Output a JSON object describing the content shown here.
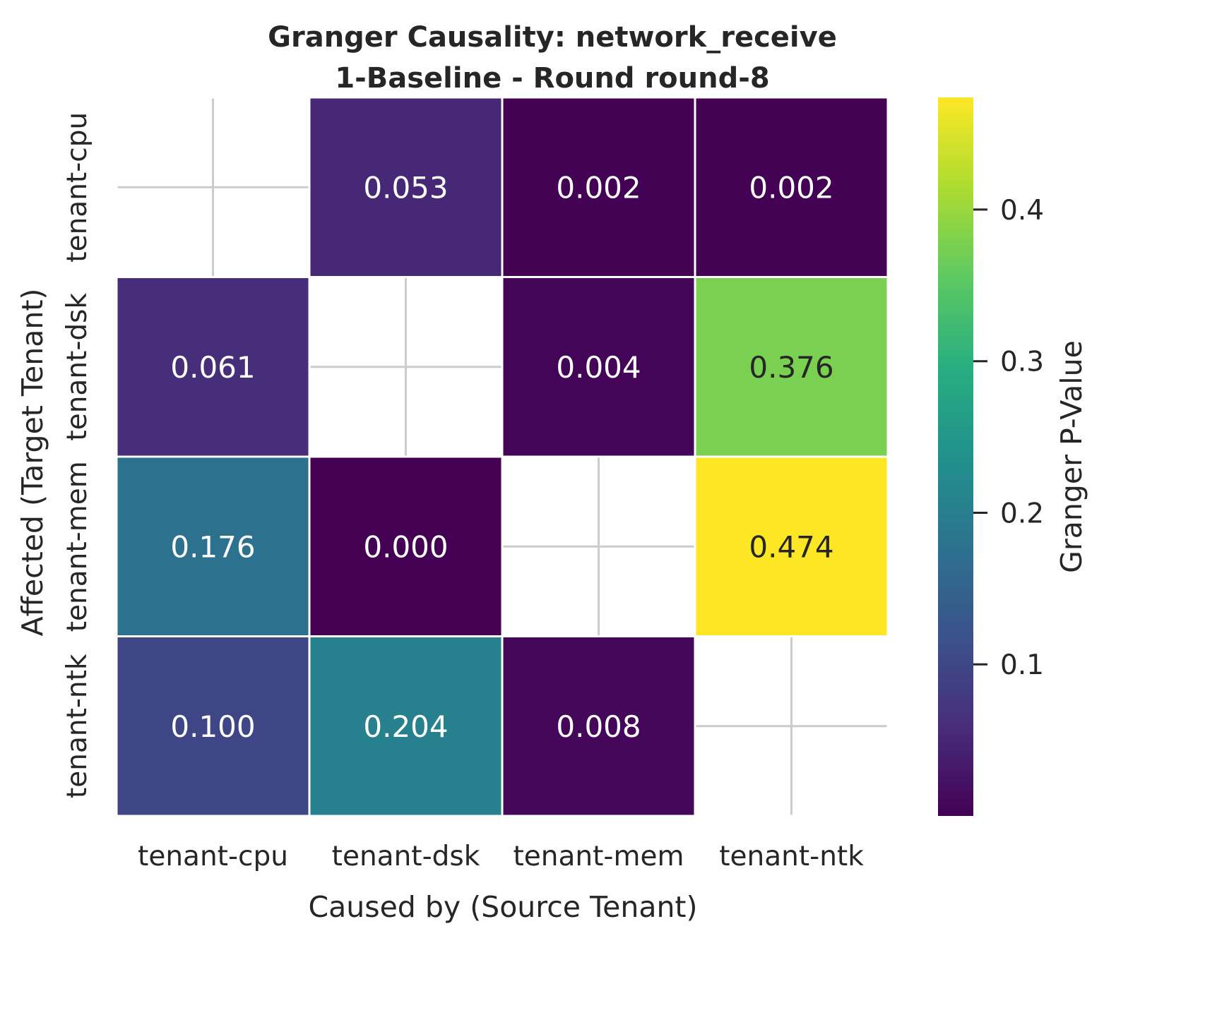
{
  "chart_data": {
    "type": "heatmap",
    "title": "Granger Causality: network_receive",
    "subtitle": "1-Baseline - Round round-8",
    "xlabel": "Caused by (Source Tenant)",
    "ylabel": "Affected (Target Tenant)",
    "x_categories": [
      "tenant-cpu",
      "tenant-dsk",
      "tenant-mem",
      "tenant-ntk"
    ],
    "y_categories": [
      "tenant-cpu",
      "tenant-dsk",
      "tenant-mem",
      "tenant-ntk"
    ],
    "values": [
      [
        null,
        0.053,
        0.002,
        0.002
      ],
      [
        0.061,
        null,
        0.004,
        0.376
      ],
      [
        0.176,
        0.0,
        null,
        0.474
      ],
      [
        0.1,
        0.204,
        0.008,
        null
      ]
    ],
    "cell_labels": [
      [
        "",
        "0.053",
        "0.002",
        "0.002"
      ],
      [
        "0.061",
        "",
        "0.004",
        "0.376"
      ],
      [
        "0.176",
        "0.000",
        "",
        "0.474"
      ],
      [
        "0.100",
        "0.204",
        "0.008",
        ""
      ]
    ],
    "colorbar": {
      "label": "Granger P-Value",
      "colormap": "viridis",
      "range": [
        0.0,
        0.474
      ],
      "ticks": [
        0.1,
        0.2,
        0.3,
        0.4
      ],
      "tick_labels": [
        "0.1",
        "0.2",
        "0.3",
        "0.4"
      ]
    },
    "grid": true
  }
}
